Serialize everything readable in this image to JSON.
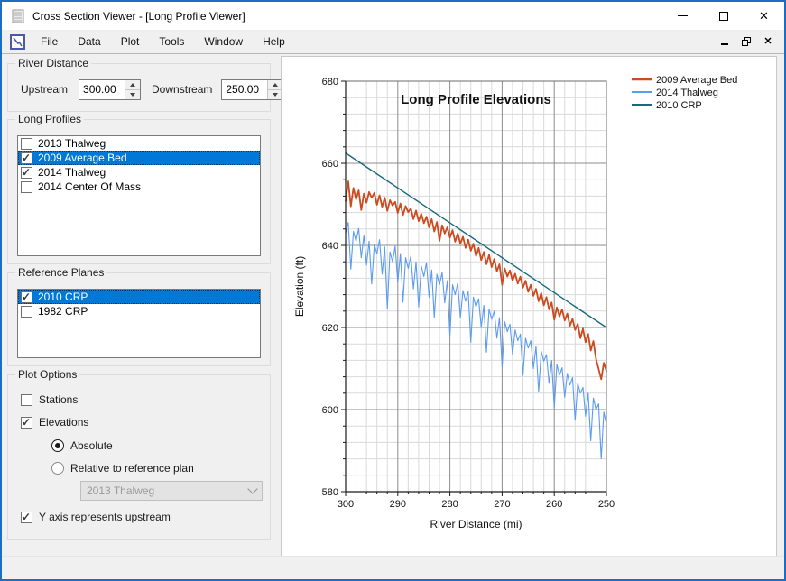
{
  "window": {
    "title": "Cross Section Viewer - [Long Profile Viewer]"
  },
  "menu": {
    "items": [
      "File",
      "Data",
      "Plot",
      "Tools",
      "Window",
      "Help"
    ]
  },
  "river_distance": {
    "label": "River Distance",
    "upstream_label": "Upstream",
    "upstream_value": "300.00",
    "downstream_label": "Downstream",
    "downstream_value": "250.00"
  },
  "long_profiles": {
    "label": "Long Profiles",
    "items": [
      {
        "label": "2013 Thalweg",
        "checked": false,
        "selected": false
      },
      {
        "label": "2009 Average Bed",
        "checked": true,
        "selected": true
      },
      {
        "label": "2014 Thalweg",
        "checked": true,
        "selected": false
      },
      {
        "label": "2014 Center Of Mass",
        "checked": false,
        "selected": false
      }
    ]
  },
  "reference_planes": {
    "label": "Reference Planes",
    "items": [
      {
        "label": "2010 CRP",
        "checked": true,
        "selected": true
      },
      {
        "label": "1982 CRP",
        "checked": false,
        "selected": false
      }
    ]
  },
  "plot_options": {
    "label": "Plot Options",
    "stations": {
      "label": "Stations",
      "checked": false
    },
    "elevations": {
      "label": "Elevations",
      "checked": true
    },
    "absolute": {
      "label": "Absolute",
      "selected": true
    },
    "relative": {
      "label": "Relative to reference plan",
      "selected": false
    },
    "reference_dropdown": {
      "value": "2013 Thalweg",
      "disabled": true
    },
    "y_axis_upstream": {
      "label": "Y axis represents upstream",
      "checked": true
    }
  },
  "chart_data": {
    "type": "line",
    "title": "Long Profile Elevations",
    "xlabel": "River Distance (mi)",
    "ylabel": "Elevation (ft)",
    "xlim": [
      300,
      250
    ],
    "ylim": [
      580,
      680
    ],
    "x_ticks": [
      300,
      290,
      280,
      270,
      260,
      250
    ],
    "y_ticks": [
      580,
      600,
      620,
      640,
      660,
      680
    ],
    "x_minor": 2,
    "y_minor": 4,
    "grid": true,
    "legend_position": "top-right-outside",
    "colors": {
      "minor_grid": "#d9d9d9",
      "major_grid": "#8c8c8c",
      "axis": "#1a1a1a",
      "frame": "#6b6b6b"
    },
    "series": [
      {
        "name": "2009 Average Bed",
        "color": "#cc4a1d",
        "width": 1.8,
        "x_start": 300,
        "x_step": -0.5,
        "values": [
          650.8,
          655.6,
          649.5,
          654.0,
          651.2,
          653.4,
          648.6,
          652.6,
          650.4,
          653.0,
          651.6,
          652.8,
          649.9,
          652.2,
          649.4,
          651.6,
          648.4,
          651.0,
          649.7,
          650.6,
          647.9,
          650.2,
          647.4,
          649.6,
          648.1,
          649.0,
          646.4,
          648.5,
          645.9,
          647.7,
          645.4,
          647.0,
          644.4,
          646.4,
          643.4,
          645.7,
          641.1,
          644.9,
          642.9,
          644.4,
          641.9,
          643.7,
          640.9,
          642.9,
          640.4,
          642.1,
          639.4,
          641.4,
          638.7,
          640.4,
          637.4,
          639.4,
          636.4,
          638.4,
          635.4,
          637.7,
          634.7,
          636.7,
          633.7,
          635.4,
          630.4,
          634.4,
          632.4,
          633.9,
          631.4,
          633.1,
          630.7,
          632.4,
          629.7,
          631.4,
          628.7,
          630.4,
          627.7,
          629.4,
          626.4,
          628.4,
          625.4,
          627.4,
          624.4,
          626.1,
          621.9,
          624.9,
          622.7,
          624.4,
          621.7,
          623.4,
          620.4,
          622.1,
          619.4,
          620.9,
          617.4,
          619.7,
          616.4,
          618.4,
          614.4,
          616.7,
          612.4,
          609.9,
          607.4,
          611.4,
          609.4
        ]
      },
      {
        "name": "2014 Thalweg",
        "color": "#5b9bef",
        "width": 1.1,
        "x_start": 300,
        "x_step": -0.5,
        "values": [
          643.0,
          645.6,
          634.2,
          643.4,
          641.0,
          644.1,
          637.0,
          642.4,
          635.2,
          641.0,
          630.6,
          640.2,
          638.0,
          641.4,
          633.0,
          639.6,
          624.6,
          638.4,
          636.0,
          639.8,
          631.0,
          638.0,
          626.2,
          637.0,
          634.4,
          637.4,
          629.4,
          636.0,
          625.0,
          635.0,
          632.4,
          635.8,
          627.4,
          634.0,
          622.4,
          633.0,
          630.4,
          633.4,
          626.0,
          631.4,
          618.0,
          630.4,
          628.0,
          630.8,
          622.4,
          629.0,
          626.4,
          628.8,
          616.4,
          627.4,
          625.0,
          627.0,
          620.0,
          625.4,
          614.0,
          624.4,
          622.0,
          624.0,
          617.4,
          622.4,
          610.4,
          621.4,
          619.0,
          620.8,
          613.4,
          619.4,
          616.8,
          618.4,
          608.4,
          617.4,
          615.0,
          616.8,
          610.0,
          615.4,
          604.4,
          614.2,
          611.8,
          613.4,
          606.4,
          612.0,
          600.4,
          611.0,
          608.4,
          610.2,
          603.0,
          608.8,
          606.0,
          607.8,
          597.4,
          606.4,
          604.0,
          605.4,
          598.4,
          604.0,
          592.4,
          602.8,
          600.0,
          601.4,
          588.0,
          599.4,
          596.4
        ]
      },
      {
        "name": "2010 CRP",
        "color": "#17697d",
        "width": 1.4,
        "points": [
          [
            300,
            662.5
          ],
          [
            250,
            620
          ]
        ]
      }
    ]
  }
}
